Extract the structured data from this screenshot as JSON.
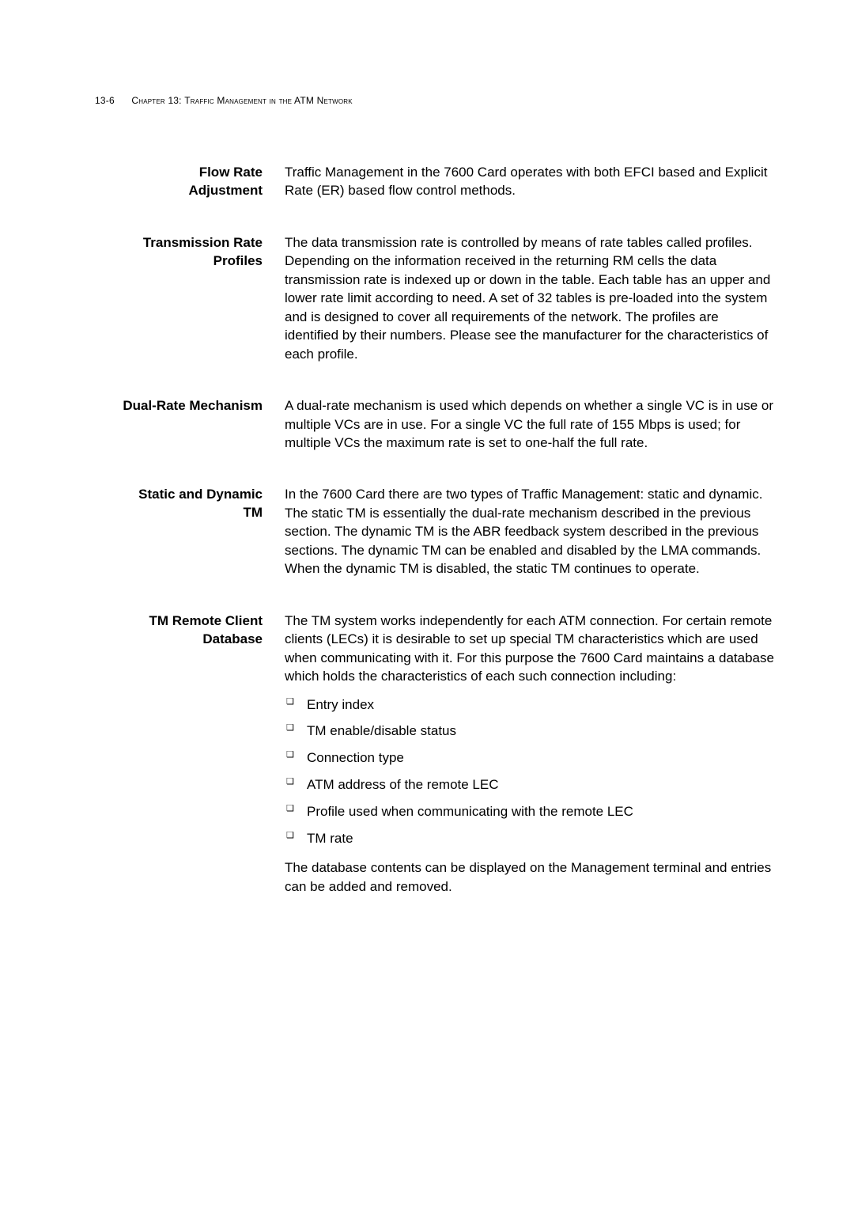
{
  "header": {
    "pageNumber": "13-6",
    "chapterWord": "Chapter",
    "chapterNum": "13:",
    "chapterTitle": "Traffic Management in the ATM Network"
  },
  "sections": {
    "flowRate": {
      "labelLine1": "Flow Rate",
      "labelLine2": "Adjustment",
      "body": "Traffic Management in the 7600 Card operates with both EFCI based and Explicit Rate (ER) based flow control methods."
    },
    "transmission": {
      "labelLine1": "Transmission Rate",
      "labelLine2": "Profiles",
      "body": "The data transmission rate is controlled by means of rate tables called profiles. Depending on the information received in the returning RM cells the data transmission rate is indexed up or down in the table. Each table has an upper and lower rate limit according to need. A set of 32 tables is pre-loaded into the system and is designed to cover all requirements of the network. The profiles are identified by their numbers. Please see the manufacturer for the characteristics of each profile."
    },
    "dualRate": {
      "labelLine1": "Dual-Rate Mechanism",
      "body": "A dual-rate mechanism is used which depends on whether a single VC is in use or multiple VCs are in use. For a single VC the full rate of 155 Mbps is used; for multiple VCs the maximum rate is set to one-half the full rate."
    },
    "staticDynamic": {
      "labelLine1": "Static and Dynamic",
      "labelLine2": "TM",
      "body": "In the 7600 Card there are two types of Traffic Management: static and dynamic. The static TM is essentially the dual-rate mechanism described in the previous section. The dynamic TM is the ABR feedback system described in the previous sections. The dynamic TM can be enabled and disabled by the LMA commands. When the dynamic TM is disabled, the static TM continues to operate."
    },
    "remoteClient": {
      "labelLine1": "TM Remote Client",
      "labelLine2": "Database",
      "body": "The TM system works independently for each ATM connection. For certain remote clients (LECs) it is desirable to set up special TM characteristics which are used when communicating with it. For this purpose the 7600 Card maintains a database which holds the characteristics of each such connection including:",
      "bullets": [
        "Entry index",
        "TM enable/disable status",
        "Connection type",
        "ATM address of the remote LEC",
        "Profile used when communicating with the remote LEC",
        "TM rate"
      ],
      "closing": "The database contents can be displayed on the Management terminal and entries can be added and removed."
    }
  }
}
